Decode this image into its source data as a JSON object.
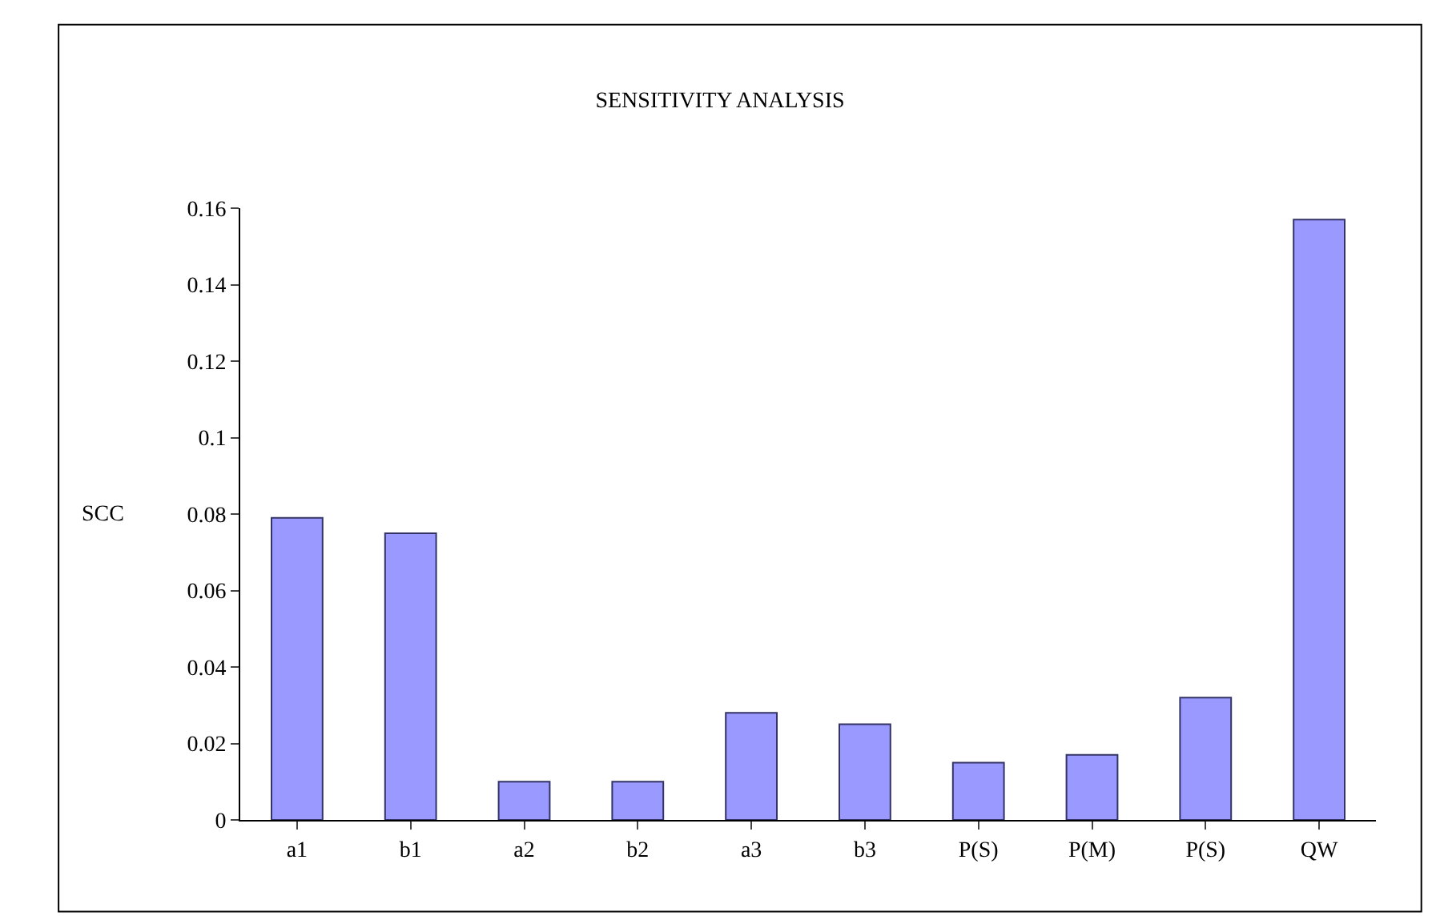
{
  "chart_data": {
    "type": "bar",
    "title": "SENSITIVITY ANALYSIS",
    "ylabel": "SCC",
    "categories": [
      "a1",
      "b1",
      "a2",
      "b2",
      "a3",
      "b3",
      "P(S)",
      "P(M)",
      "P(S)",
      "QW"
    ],
    "values": [
      0.079,
      0.075,
      0.01,
      0.01,
      0.028,
      0.025,
      0.015,
      0.017,
      0.032,
      0.157
    ],
    "color": "#9999ff",
    "ylim": [
      0,
      0.16
    ],
    "yticks": [
      0,
      0.02,
      0.04,
      0.06,
      0.08,
      0.1,
      0.12,
      0.14,
      0.16
    ],
    "grid": false
  }
}
